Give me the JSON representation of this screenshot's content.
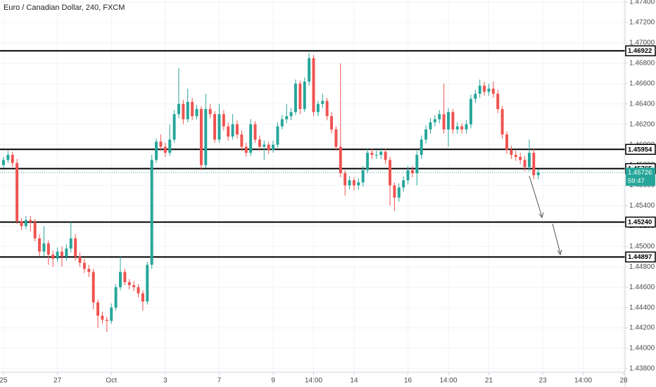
{
  "chart_data": {
    "type": "candlestick",
    "title": "Euro / Canadian Dollar, 240, FXCM",
    "open": [
      1.458,
      1.4585,
      1.459,
      1.4582,
      1.4525,
      1.452,
      1.4526,
      1.4524,
      1.4508,
      1.4495,
      1.4503,
      1.4492,
      1.4488,
      1.4495,
      1.449,
      1.4498,
      1.4508,
      1.449,
      1.4484,
      1.4478,
      1.4475,
      1.4445,
      1.4432,
      1.4428,
      1.4427,
      1.444,
      1.446,
      1.4475,
      1.4465,
      1.4462,
      1.446,
      1.4454,
      1.4446,
      1.4482,
      1.4585,
      1.4603,
      1.4598,
      1.4592,
      1.4605,
      1.463,
      1.464,
      1.4625,
      1.4642,
      1.4628,
      1.4635,
      1.458,
      1.4635,
      1.463,
      1.4605,
      1.463,
      1.4618,
      1.4608,
      1.462,
      1.461,
      1.4598,
      1.4592,
      1.462,
      1.4605,
      1.4598,
      1.46,
      1.4595,
      1.46,
      1.4618,
      1.4625,
      1.4628,
      1.4632,
      1.466,
      1.4635,
      1.4662,
      1.4685,
      1.4632,
      1.464,
      1.4643,
      1.4628,
      1.4615,
      1.4598,
      1.4572,
      1.456,
      1.4565,
      1.456,
      1.4563,
      1.4575,
      1.4592,
      1.459,
      1.459,
      1.4593,
      1.4585,
      1.456,
      1.4548,
      1.4558,
      1.4565,
      1.4575,
      1.4572,
      1.459,
      1.4605,
      1.4615,
      1.4622,
      1.4625,
      1.463,
      1.4615,
      1.4632,
      1.4615,
      1.4618,
      1.4615,
      1.462,
      1.4645,
      1.465,
      1.4658,
      1.4652,
      1.4655,
      1.465,
      1.4635,
      1.461,
      1.4595,
      1.459,
      1.4588,
      1.4585,
      1.4578,
      1.4592,
      1.457
    ],
    "high": [
      1.4588,
      1.4594,
      1.4593,
      1.4586,
      1.4528,
      1.453,
      1.453,
      1.4527,
      1.4512,
      1.452,
      1.4506,
      1.4496,
      1.4499,
      1.45,
      1.4502,
      1.4524,
      1.4512,
      1.4494,
      1.4488,
      1.4482,
      1.4478,
      1.4448,
      1.4436,
      1.4431,
      1.4444,
      1.4463,
      1.449,
      1.4478,
      1.4468,
      1.4466,
      1.4463,
      1.4457,
      1.4485,
      1.459,
      1.4606,
      1.461,
      1.4602,
      1.462,
      1.4634,
      1.4675,
      1.4644,
      1.4655,
      1.4646,
      1.4639,
      1.4638,
      1.465,
      1.464,
      1.4633,
      1.464,
      1.4634,
      1.4622,
      1.463,
      1.4624,
      1.4614,
      1.4602,
      1.4625,
      1.4623,
      1.4609,
      1.4604,
      1.4603,
      1.4604,
      1.4622,
      1.4629,
      1.464,
      1.4636,
      1.4664,
      1.4663,
      1.4666,
      1.469,
      1.4688,
      1.4643,
      1.465,
      1.4646,
      1.4632,
      1.4618,
      1.468,
      1.4575,
      1.4569,
      1.4568,
      1.4567,
      1.4579,
      1.4596,
      1.4596,
      1.4594,
      1.4597,
      1.4596,
      1.4588,
      1.4563,
      1.4562,
      1.4569,
      1.4579,
      1.4579,
      1.4594,
      1.4609,
      1.4619,
      1.4626,
      1.4629,
      1.4634,
      1.466,
      1.4636,
      1.4635,
      1.4622,
      1.4621,
      1.4624,
      1.4649,
      1.4654,
      1.4664,
      1.4662,
      1.466,
      1.4662,
      1.4654,
      1.4638,
      1.4613,
      1.4599,
      1.4594,
      1.4592,
      1.4589,
      1.4605,
      1.4596,
      1.4576
    ],
    "low": [
      1.4577,
      1.4582,
      1.4578,
      1.4522,
      1.4516,
      1.4517,
      1.4515,
      1.4505,
      1.449,
      1.449,
      1.4482,
      1.448,
      1.4485,
      1.448,
      1.4486,
      1.4494,
      1.4486,
      1.448,
      1.4474,
      1.447,
      1.4438,
      1.442,
      1.4424,
      1.4416,
      1.4424,
      1.4437,
      1.4457,
      1.4462,
      1.4458,
      1.4456,
      1.445,
      1.4437,
      1.4443,
      1.4478,
      1.4582,
      1.4594,
      1.4588,
      1.4589,
      1.4602,
      1.4626,
      1.462,
      1.4622,
      1.4624,
      1.4625,
      1.4575,
      1.4577,
      1.4626,
      1.4602,
      1.4602,
      1.4614,
      1.4604,
      1.4605,
      1.4606,
      1.4594,
      1.4588,
      1.4589,
      1.4602,
      1.4594,
      1.4585,
      1.4591,
      1.4592,
      1.4597,
      1.4615,
      1.4621,
      1.4624,
      1.4629,
      1.463,
      1.4632,
      1.4658,
      1.4628,
      1.4628,
      1.4636,
      1.4624,
      1.4611,
      1.4594,
      1.4568,
      1.455,
      1.4556,
      1.4555,
      1.4556,
      1.4559,
      1.4572,
      1.4586,
      1.4586,
      1.4586,
      1.4581,
      1.454,
      1.4535,
      1.4544,
      1.4554,
      1.4561,
      1.4568,
      1.456,
      1.4586,
      1.4601,
      1.4611,
      1.4618,
      1.4621,
      1.4611,
      1.4598,
      1.4611,
      1.4611,
      1.4611,
      1.4611,
      1.4616,
      1.4641,
      1.4646,
      1.4648,
      1.4648,
      1.4646,
      1.4631,
      1.4606,
      1.4591,
      1.4586,
      1.4584,
      1.4581,
      1.4574,
      1.4574,
      1.4566,
      1.4566
    ],
    "close": [
      1.4585,
      1.459,
      1.4582,
      1.4525,
      1.452,
      1.4526,
      1.4524,
      1.4508,
      1.4495,
      1.4503,
      1.4492,
      1.4488,
      1.4495,
      1.449,
      1.4498,
      1.4508,
      1.449,
      1.4484,
      1.4478,
      1.4475,
      1.4445,
      1.4432,
      1.4428,
      1.4427,
      1.444,
      1.446,
      1.4475,
      1.4465,
      1.4462,
      1.446,
      1.4454,
      1.4446,
      1.4482,
      1.4585,
      1.4603,
      1.4598,
      1.4592,
      1.4605,
      1.463,
      1.464,
      1.4625,
      1.4642,
      1.4628,
      1.4635,
      1.458,
      1.4635,
      1.463,
      1.4605,
      1.463,
      1.4618,
      1.4608,
      1.462,
      1.461,
      1.4598,
      1.4592,
      1.462,
      1.4605,
      1.4598,
      1.46,
      1.4595,
      1.46,
      1.4618,
      1.4625,
      1.4628,
      1.4632,
      1.466,
      1.4635,
      1.4662,
      1.4685,
      1.4632,
      1.464,
      1.4643,
      1.4628,
      1.4615,
      1.4598,
      1.4572,
      1.456,
      1.4565,
      1.456,
      1.4563,
      1.4575,
      1.4592,
      1.459,
      1.459,
      1.4593,
      1.4585,
      1.456,
      1.4548,
      1.4558,
      1.4565,
      1.4575,
      1.4572,
      1.459,
      1.4605,
      1.4615,
      1.4622,
      1.4625,
      1.463,
      1.4615,
      1.4632,
      1.4615,
      1.4618,
      1.4615,
      1.462,
      1.4645,
      1.465,
      1.4658,
      1.4652,
      1.4655,
      1.465,
      1.4635,
      1.461,
      1.4595,
      1.459,
      1.4588,
      1.4585,
      1.4578,
      1.4592,
      1.457,
      1.45726
    ],
    "up_color": "#26a69a",
    "down_color": "#ef5350",
    "countdown": "59:47",
    "levels": [
      1.46922,
      1.45954,
      1.45765,
      {
        "value": 1.4524,
        "label": "1.45240"
      },
      1.44897
    ],
    "level_color": "#000000",
    "grid": true,
    "xlim": [
      -0.78,
      138.31
    ],
    "ylim": [
      1.43765,
      1.47421
    ],
    "xticks": [
      {
        "value": 0,
        "label": "25"
      },
      {
        "value": 12,
        "label": "27"
      },
      {
        "value": 24,
        "label": "Oct"
      },
      {
        "value": 36,
        "label": "3"
      },
      {
        "value": 48,
        "label": "7"
      },
      {
        "value": 60,
        "label": "9"
      },
      {
        "value": 69,
        "label": "14:00"
      },
      {
        "value": 78,
        "label": "14"
      },
      {
        "value": 90,
        "label": "16"
      },
      {
        "value": 99,
        "label": "14:00"
      },
      {
        "value": 108,
        "label": "21"
      },
      {
        "value": 120,
        "label": "23"
      },
      {
        "value": 129,
        "label": "14:00"
      },
      {
        "value": 138,
        "label": "28"
      }
    ],
    "yticks": [
      {
        "value": 1.438,
        "label": "1.43800"
      },
      {
        "value": 1.44,
        "label": "1.44000"
      },
      {
        "value": 1.442,
        "label": "1.44200"
      },
      {
        "value": 1.444,
        "label": "1.44400"
      },
      {
        "value": 1.446,
        "label": "1.44600"
      },
      {
        "value": 1.448,
        "label": "1.44800"
      },
      {
        "value": 1.45,
        "label": "1.45000"
      },
      {
        "value": 1.452,
        "label": "1.45200"
      },
      {
        "value": 1.454,
        "label": "1.45400"
      },
      {
        "value": 1.456,
        "label": "1.45600"
      },
      {
        "value": 1.458,
        "label": "1.45800"
      },
      {
        "value": 1.46,
        "label": "1.46000"
      },
      {
        "value": 1.462,
        "label": "1.46200"
      },
      {
        "value": 1.464,
        "label": "1.46400"
      },
      {
        "value": 1.466,
        "label": "1.46600"
      },
      {
        "value": 1.468,
        "label": "1.46800"
      },
      {
        "value": 1.47,
        "label": "1.47000"
      },
      {
        "value": 1.472,
        "label": "1.47200"
      },
      {
        "value": 1.474,
        "label": "1.47400"
      }
    ]
  }
}
